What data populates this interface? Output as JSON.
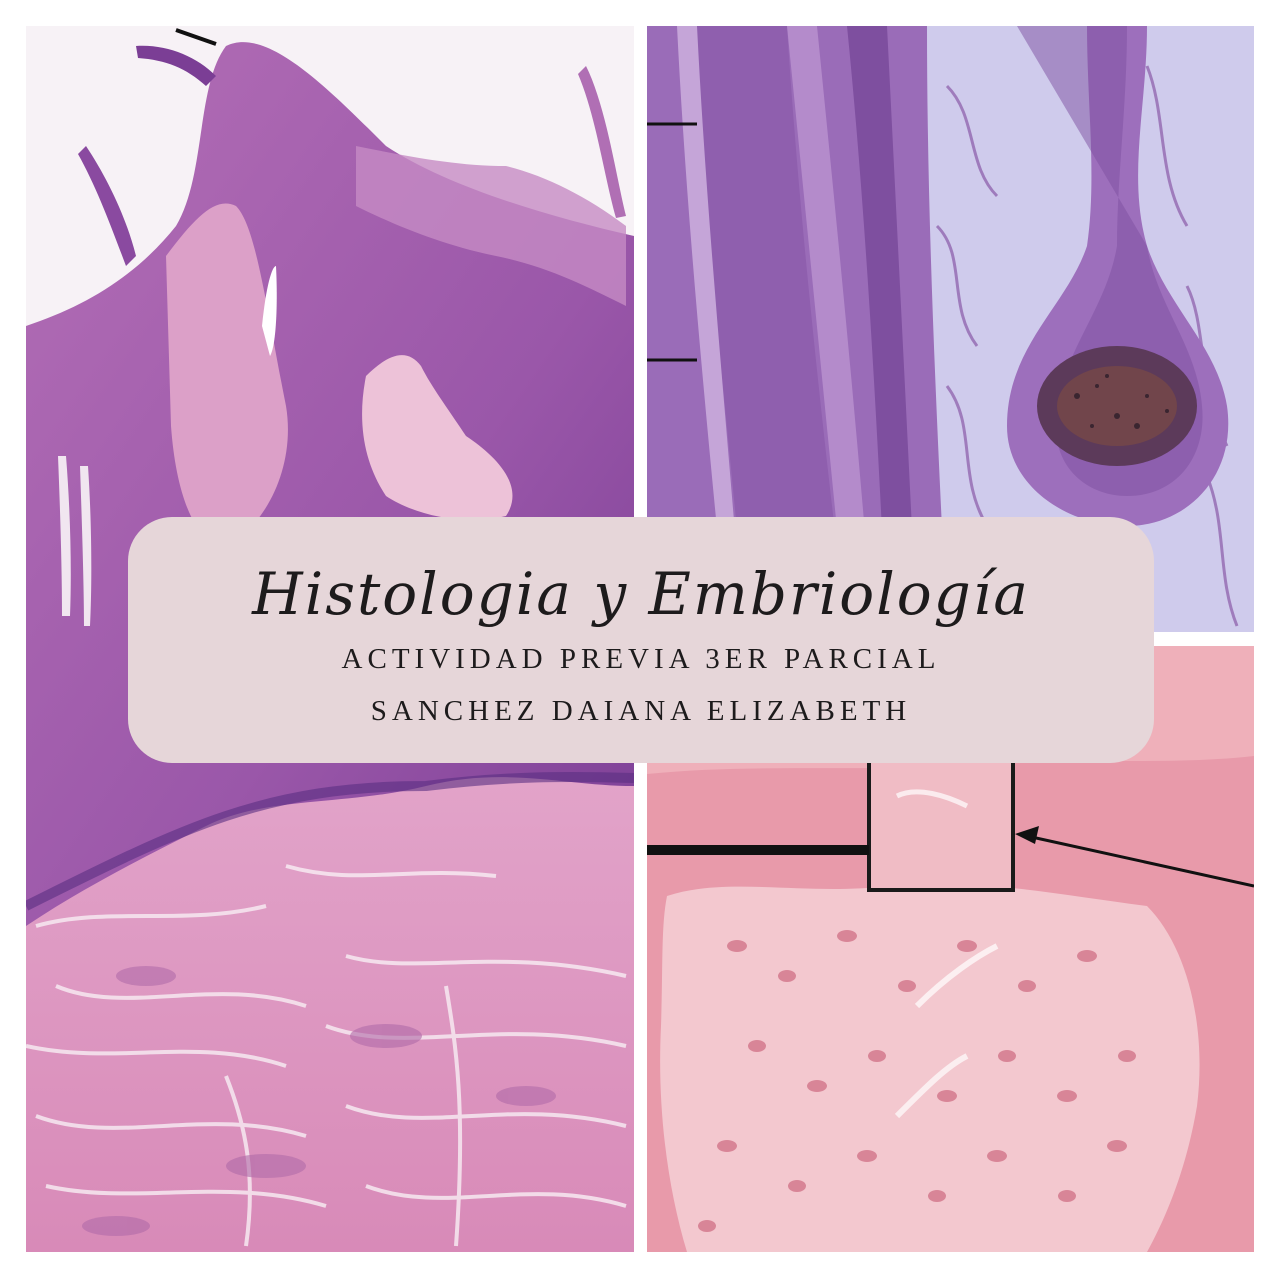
{
  "card": {
    "title": "Histologia y Embriología",
    "subtitle_1": "ACTIVIDAD PREVIA 3ER PARCIAL",
    "subtitle_2": "SANCHEZ DAIANA ELIZABETH"
  },
  "colors": {
    "card_background": "#e6d6d9",
    "text": "#1d1b1c",
    "tissue_pink": "#d98fc2",
    "tissue_purple": "#8a4aa0",
    "stroma_pink": "#e8a9c7",
    "lavender_bg": "#c9c4ea",
    "salmon_tissue": "#e79aa7"
  },
  "panels": [
    {
      "name": "stratified-epithelium-micrograph"
    },
    {
      "name": "hair-follicle-micrograph"
    },
    {
      "name": "epithelium-with-callout-micrograph"
    }
  ]
}
